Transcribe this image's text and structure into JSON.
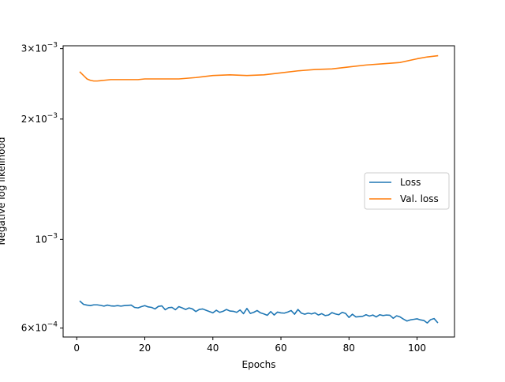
{
  "chart_data": {
    "type": "line",
    "xlabel": "Epochs",
    "ylabel": "Negative log likelihood",
    "xlim": [
      -4,
      111
    ],
    "ylim": [
      0.00057,
      0.00305
    ],
    "yscale": "log",
    "xticks": [
      0,
      20,
      40,
      60,
      80,
      100
    ],
    "xtick_labels": [
      "0",
      "20",
      "40",
      "60",
      "80",
      "100"
    ],
    "yticks": [
      0.0006,
      0.001,
      0.002,
      0.003
    ],
    "ytick_labels": [
      {
        "mantissa": "6",
        "exp": "−4"
      },
      {
        "mantissa": "",
        "exp": "−3"
      },
      {
        "mantissa": "2",
        "exp": "−3"
      },
      {
        "mantissa": "3",
        "exp": "−3"
      }
    ],
    "legend_position": "center-right",
    "series": [
      {
        "name": "Loss",
        "color": "#1f77b4",
        "x": [
          1,
          2,
          3,
          4,
          5,
          6,
          7,
          8,
          9,
          10,
          11,
          12,
          13,
          14,
          15,
          16,
          17,
          18,
          19,
          20,
          21,
          22,
          23,
          24,
          25,
          26,
          27,
          28,
          29,
          30,
          31,
          32,
          33,
          34,
          35,
          36,
          37,
          38,
          39,
          40,
          41,
          42,
          43,
          44,
          45,
          46,
          47,
          48,
          49,
          50,
          51,
          52,
          53,
          54,
          55,
          56,
          57,
          58,
          59,
          60,
          61,
          62,
          63,
          64,
          65,
          66,
          67,
          68,
          69,
          70,
          71,
          72,
          73,
          74,
          75,
          76,
          77,
          78,
          79,
          80,
          81,
          82,
          83,
          84,
          85,
          86,
          87,
          88,
          89,
          90,
          91,
          92,
          93,
          94,
          95,
          96,
          97,
          98,
          99,
          100,
          101,
          102,
          103,
          104,
          105,
          106
        ],
        "values": [
          0.0007,
          0.000688,
          0.000685,
          0.000683,
          0.000686,
          0.000686,
          0.000684,
          0.000681,
          0.000685,
          0.000682,
          0.000681,
          0.000683,
          0.000681,
          0.000683,
          0.000684,
          0.000685,
          0.000676,
          0.000674,
          0.000679,
          0.000683,
          0.000678,
          0.000676,
          0.00067,
          0.00068,
          0.000682,
          0.000667,
          0.000675,
          0.000676,
          0.000667,
          0.000679,
          0.000674,
          0.000668,
          0.000674,
          0.00067,
          0.00066,
          0.000668,
          0.00067,
          0.000665,
          0.00066,
          0.000655,
          0.000665,
          0.000657,
          0.000661,
          0.000668,
          0.000662,
          0.000661,
          0.000657,
          0.000666,
          0.000652,
          0.000672,
          0.000653,
          0.000657,
          0.000664,
          0.000655,
          0.000651,
          0.000646,
          0.00066,
          0.000647,
          0.000658,
          0.000655,
          0.000654,
          0.000658,
          0.000664,
          0.00065,
          0.000668,
          0.000654,
          0.00065,
          0.000654,
          0.000651,
          0.000655,
          0.000647,
          0.000652,
          0.000645,
          0.000647,
          0.000656,
          0.000651,
          0.000648,
          0.000657,
          0.000653,
          0.000638,
          0.00065,
          0.00064,
          0.000641,
          0.000642,
          0.000648,
          0.000643,
          0.000647,
          0.00064,
          0.000648,
          0.000645,
          0.000647,
          0.000646,
          0.000635,
          0.000644,
          0.00064,
          0.000632,
          0.000625,
          0.000629,
          0.000631,
          0.000633,
          0.000629,
          0.000627,
          0.000618,
          0.00063,
          0.000634,
          0.00062
        ]
      },
      {
        "name": "Val. loss",
        "color": "#ff7f0e",
        "x": [
          1,
          2,
          3,
          4,
          5,
          6,
          8,
          10,
          12,
          15,
          18,
          20,
          25,
          30,
          35,
          40,
          45,
          50,
          55,
          60,
          65,
          70,
          75,
          80,
          85,
          90,
          95,
          100,
          103,
          106
        ],
        "values": [
          0.00262,
          0.00257,
          0.00252,
          0.0025,
          0.00249,
          0.00249,
          0.0025,
          0.00251,
          0.00251,
          0.00251,
          0.00251,
          0.00252,
          0.00252,
          0.00252,
          0.00254,
          0.00257,
          0.00258,
          0.00257,
          0.00258,
          0.00261,
          0.00264,
          0.00266,
          0.00267,
          0.0027,
          0.00273,
          0.00275,
          0.00277,
          0.00283,
          0.00286,
          0.00288
        ]
      }
    ]
  }
}
